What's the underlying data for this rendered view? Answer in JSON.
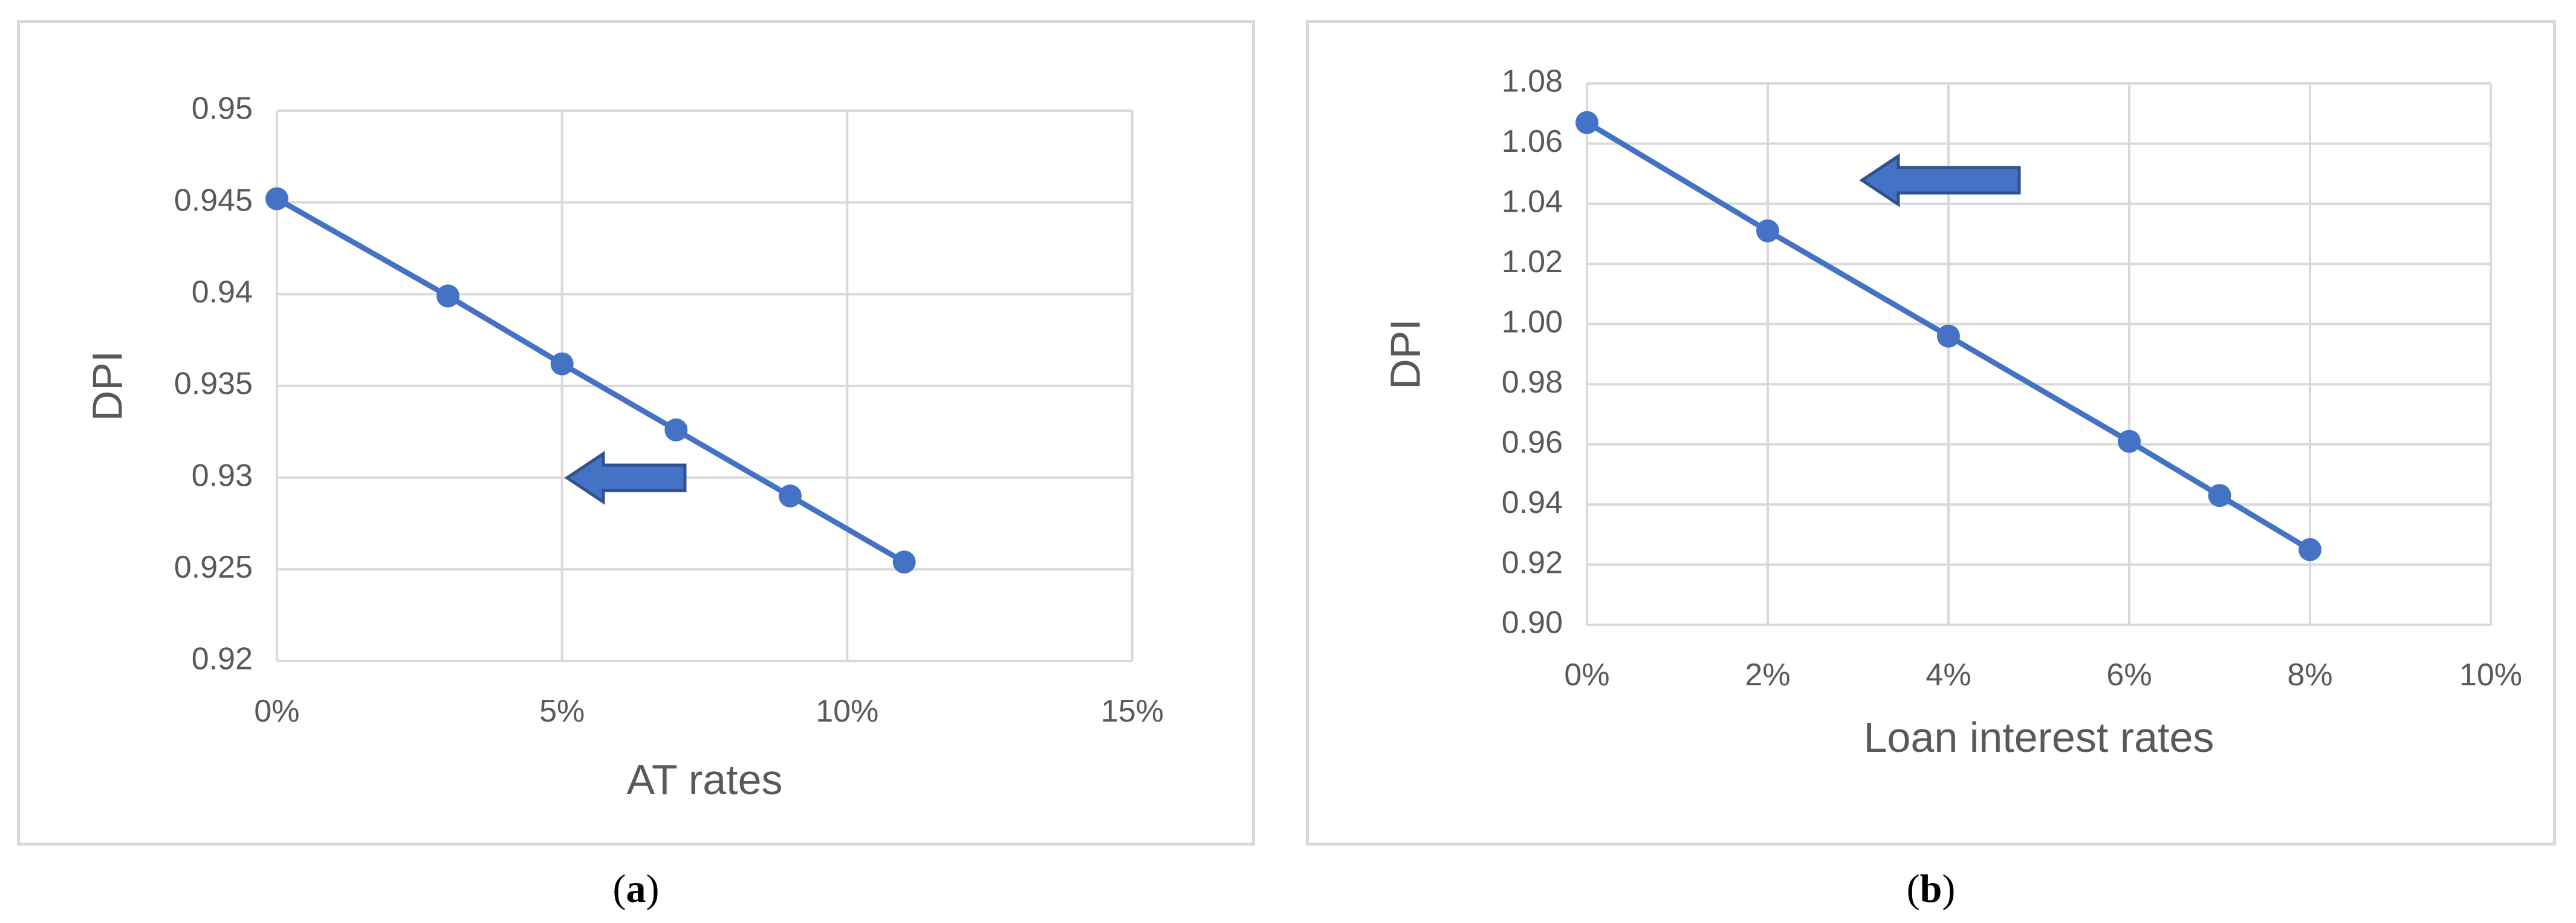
{
  "chart_data": [
    {
      "type": "line",
      "panel": "a",
      "x": [
        0,
        3,
        5,
        7,
        9,
        11
      ],
      "y": [
        0.9452,
        0.9399,
        0.9362,
        0.9326,
        0.929,
        0.9254
      ],
      "xlabel": "AT rates",
      "ylabel": "DPI",
      "xlim": [
        0,
        15
      ],
      "ylim": [
        0.92,
        0.95
      ],
      "x_ticks": [
        "0%",
        "5%",
        "10%",
        "15%"
      ],
      "y_ticks": [
        "0.92",
        "0.925",
        "0.93",
        "0.935",
        "0.94",
        "0.945",
        "0.95"
      ],
      "grid": true,
      "line_color": "#4472c4",
      "annotation": "left-pointing arrow",
      "annotation_color": "#4472c4"
    },
    {
      "type": "line",
      "panel": "b",
      "x": [
        0,
        2,
        4,
        6,
        7,
        8
      ],
      "y": [
        1.067,
        1.031,
        0.996,
        0.961,
        0.943,
        0.925
      ],
      "xlabel": "Loan interest rates",
      "ylabel": "DPI",
      "xlim": [
        0,
        10
      ],
      "ylim": [
        0.9,
        1.08
      ],
      "x_ticks": [
        "0%",
        "2%",
        "4%",
        "6%",
        "8%",
        "10%"
      ],
      "y_ticks": [
        "0.90",
        "0.92",
        "0.94",
        "0.96",
        "0.98",
        "1.00",
        "1.02",
        "1.04",
        "1.06",
        "1.08"
      ],
      "grid": true,
      "line_color": "#4472c4",
      "annotation": "left-pointing arrow",
      "annotation_color": "#4472c4"
    }
  ],
  "captions": {
    "a": {
      "open": "(",
      "letter": "a",
      "close": ")"
    },
    "b": {
      "open": "(",
      "letter": "b",
      "close": ")"
    }
  }
}
